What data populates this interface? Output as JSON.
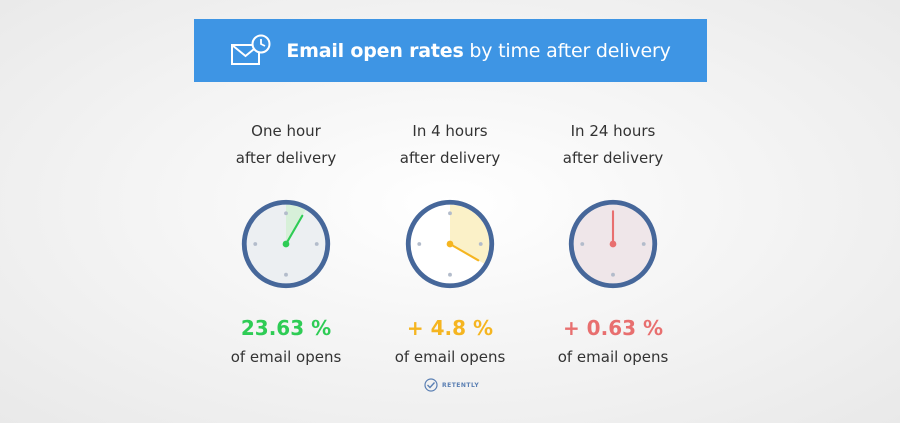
{
  "banner": {
    "title_bold": "Email open rates",
    "title_rest": " by time after delivery",
    "icon": "envelope-clock-icon"
  },
  "columns": [
    {
      "line1": "One hour",
      "line2": "after delivery",
      "value": "23.63 %",
      "caption": "of email opens",
      "color": "#2ecc55",
      "sector_color": "#d7f0d9",
      "face_color": "#eceff2",
      "sector_minutes": 5,
      "hand_minutes": 5
    },
    {
      "line1": "In 4 hours",
      "line2": "after delivery",
      "value": "+ 4.8 %",
      "caption": "of email opens",
      "color": "#f5b520",
      "sector_color": "#fbf1c8",
      "face_color": "#ffffff",
      "sector_minutes": 20,
      "hand_minutes": 20
    },
    {
      "line1": "In 24 hours",
      "line2": "after delivery",
      "value": "+ 0.63 %",
      "caption": "of email opens",
      "color": "#e86f6f",
      "sector_color": "#f2e4e6",
      "face_color": "#efe6e9",
      "sector_minutes": 0,
      "hand_minutes": 0
    }
  ],
  "brand": {
    "name": "RETENTLY",
    "color": "#5a7fb3"
  },
  "colors": {
    "banner": "#3e95e4",
    "clock_ring": "#46679a",
    "marker": "#b3bccb"
  }
}
